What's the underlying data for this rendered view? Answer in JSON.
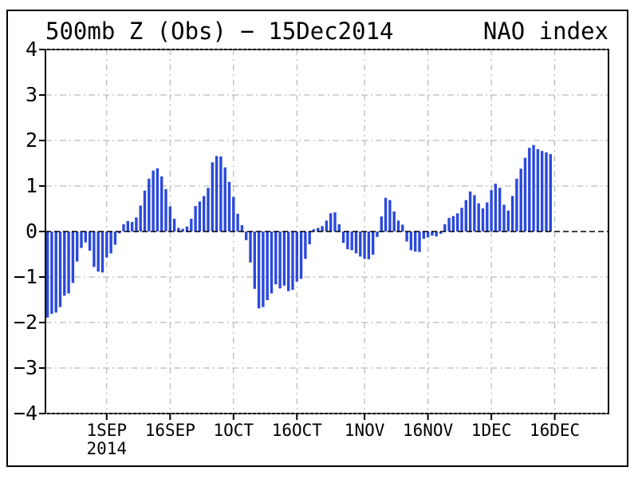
{
  "window": {
    "background": "#ffffff"
  },
  "chart_data": {
    "type": "bar",
    "title_left": "500mb Z (Obs) − 15Dec2014",
    "title_right": "NAO index",
    "ylabel": "",
    "xlabel": "",
    "ylim": [
      -4,
      4
    ],
    "y_ticks": [
      4,
      3,
      2,
      1,
      0,
      -1,
      -2,
      -3,
      -4
    ],
    "x_start_date": "18AUG2014",
    "x_end_date": "15DEC2014",
    "x_step": "1 day",
    "x_tick_labels": [
      "1SEP",
      "16SEP",
      "1OCT",
      "16OCT",
      "1NOV",
      "16NOV",
      "1DEC",
      "16DEC"
    ],
    "x_tick_days": [
      15,
      30,
      45,
      60,
      76,
      91,
      106,
      121
    ],
    "x_year_label": "2014",
    "grid": "dash-dot gray, vertical at half-month ticks, horizontal at integers",
    "zero_line": "black dashed",
    "legend": "none",
    "colors": {
      "bar": "#2b49db",
      "grid": "#a9a9a9",
      "axis": "#000000",
      "text": "#000000",
      "background": "#ffffff"
    },
    "values": [
      -1.89,
      -1.81,
      -1.78,
      -1.66,
      -1.41,
      -1.36,
      -1.13,
      -0.66,
      -0.36,
      -0.24,
      -0.42,
      -0.78,
      -0.88,
      -0.9,
      -0.57,
      -0.48,
      -0.29,
      -0.04,
      0.16,
      0.23,
      0.21,
      0.31,
      0.57,
      0.9,
      1.16,
      1.34,
      1.39,
      1.21,
      0.93,
      0.55,
      0.28,
      0.08,
      0.06,
      0.11,
      0.28,
      0.56,
      0.66,
      0.78,
      0.96,
      1.52,
      1.66,
      1.65,
      1.41,
      1.09,
      0.76,
      0.39,
      0.14,
      -0.19,
      -0.68,
      -1.26,
      -1.69,
      -1.66,
      -1.51,
      -1.36,
      -1.16,
      -1.25,
      -1.19,
      -1.31,
      -1.28,
      -1.1,
      -1.04,
      -0.6,
      -0.28,
      0.05,
      0.08,
      0.12,
      0.24,
      0.4,
      0.42,
      0.16,
      -0.25,
      -0.39,
      -0.41,
      -0.48,
      -0.55,
      -0.6,
      -0.61,
      -0.51,
      -0.12,
      0.33,
      0.74,
      0.69,
      0.44,
      0.24,
      0.15,
      -0.22,
      -0.41,
      -0.44,
      -0.45,
      -0.16,
      -0.13,
      -0.09,
      -0.11,
      -0.05,
      0.16,
      0.3,
      0.34,
      0.4,
      0.52,
      0.69,
      0.88,
      0.8,
      0.62,
      0.51,
      0.64,
      0.91,
      1.05,
      0.96,
      0.59,
      0.46,
      0.78,
      1.16,
      1.38,
      1.62,
      1.84,
      1.9,
      1.81,
      1.77,
      1.74,
      1.7
    ]
  }
}
